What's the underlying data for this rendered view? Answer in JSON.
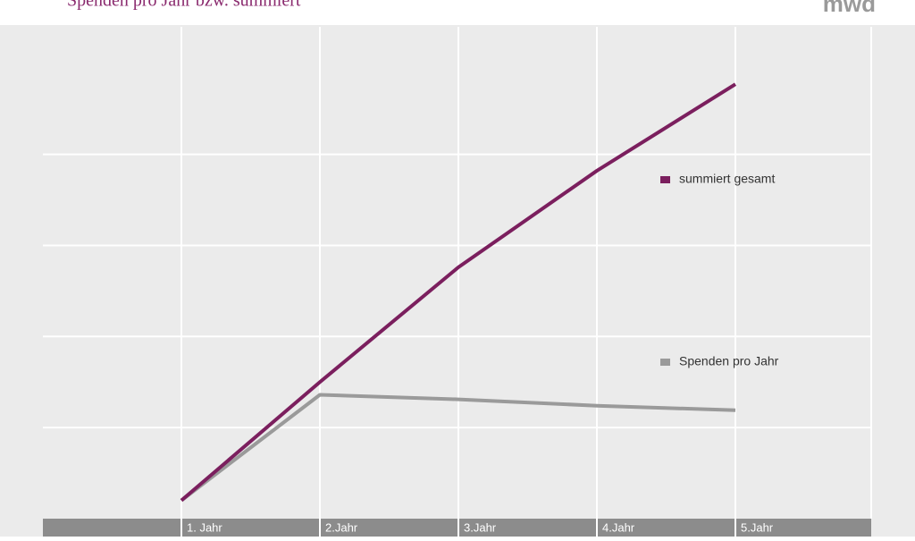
{
  "chart_data": {
    "type": "line",
    "title": "Spenden pro Jahr bzw. summiert",
    "logo": "mwd",
    "categories": [
      "1. Jahr",
      "2.Jahr",
      "3.Jahr",
      "4.Jahr",
      "5.Jahr"
    ],
    "series": [
      {
        "name": "summiert gesamt",
        "color": "#7b1f5e",
        "values": [
          0.2,
          1.5,
          2.76,
          3.82,
          4.77
        ]
      },
      {
        "name": "Spenden pro Jahr",
        "color": "#9a9a9a",
        "values": [
          0.2,
          1.36,
          1.31,
          1.24,
          1.19
        ]
      }
    ],
    "ylim": [
      0,
      5.4
    ],
    "yticks": [
      1,
      2,
      3,
      4
    ],
    "grid": true,
    "legend": "right"
  }
}
